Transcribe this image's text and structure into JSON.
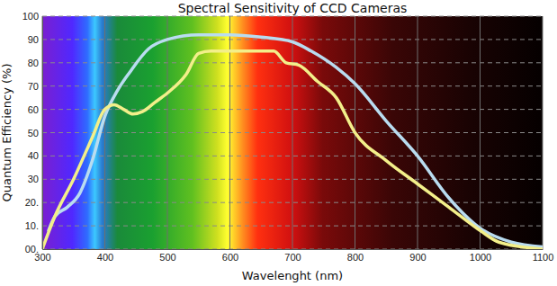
{
  "chart_data": {
    "type": "line",
    "title": "Spectral Sensitivity of CCD Cameras",
    "x_label": "Wavelenght (nm)",
    "y_label": "Quantum Efficiency (%)",
    "xlim": [
      300,
      1100
    ],
    "xticks": [
      300,
      400,
      500,
      600,
      700,
      800,
      900,
      1000,
      1100
    ],
    "ylim": [
      0,
      100
    ],
    "yticks": [
      {
        "value": 0,
        "label": "00."
      },
      {
        "value": 10,
        "label": "10."
      },
      {
        "value": 20,
        "label": "20."
      },
      30,
      40,
      50,
      60,
      70,
      80,
      90,
      100
    ],
    "grid": true,
    "series": [
      {
        "color": "#b9dcf0",
        "x": [
          310,
          320,
          340,
          360,
          380,
          400,
          420,
          440,
          470,
          500,
          550,
          600,
          650,
          700,
          730,
          770,
          800,
          850,
          900,
          950,
          1000,
          1050,
          1100
        ],
        "values": [
          8,
          14,
          18,
          24,
          38,
          57,
          68,
          76,
          86,
          90,
          92,
          92,
          91,
          89,
          85,
          78,
          71,
          55,
          40,
          22,
          9,
          3,
          1
        ]
      },
      {
        "color": "#f3ef8a",
        "x": [
          300,
          320,
          350,
          380,
          400,
          415,
          430,
          445,
          460,
          480,
          500,
          530,
          550,
          570,
          600,
          650,
          670,
          690,
          710,
          740,
          770,
          800,
          850,
          900,
          950,
          1000,
          1030,
          1100
        ],
        "values": [
          0,
          14,
          30,
          48,
          60,
          62,
          60,
          58,
          59,
          63,
          67,
          75,
          84,
          85,
          85,
          85,
          85,
          80,
          79,
          72,
          65,
          50,
          38,
          28,
          18,
          8,
          3,
          0
        ]
      }
    ]
  }
}
